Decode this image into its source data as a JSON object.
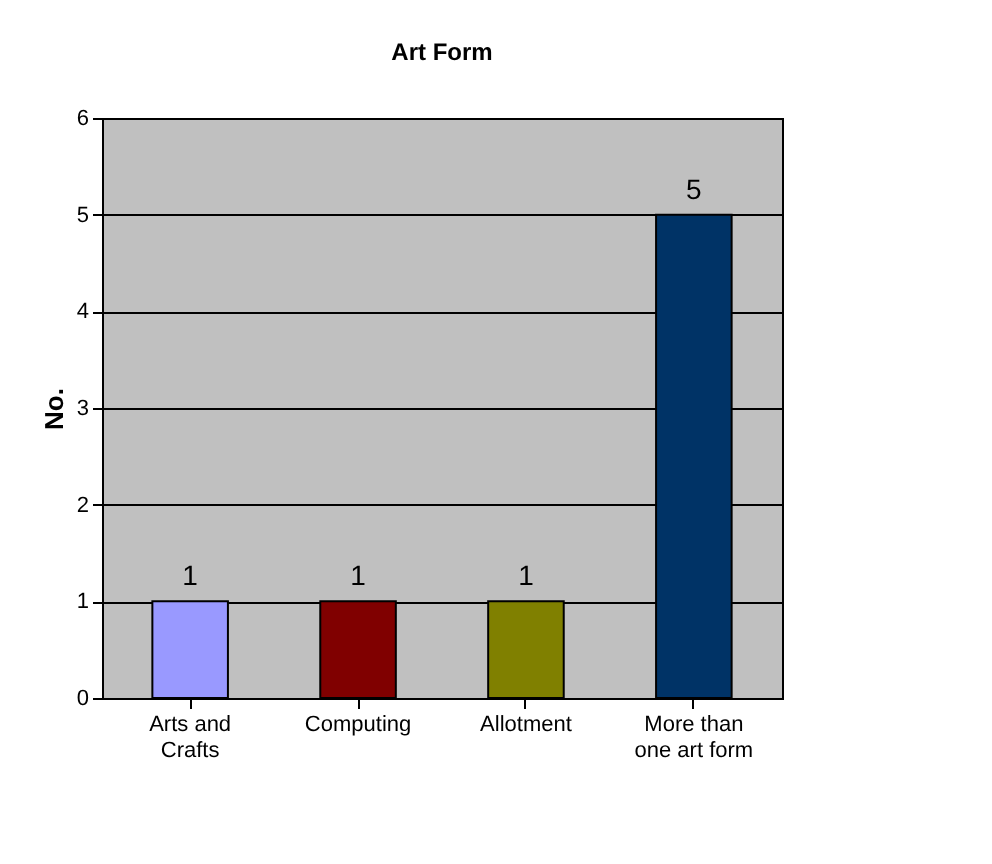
{
  "chart_data": {
    "type": "bar",
    "title": "Art Form",
    "ylabel": "No.",
    "categories": [
      "Arts and Crafts",
      "Computing",
      "Allotment",
      "More than one art form"
    ],
    "values": [
      1,
      1,
      1,
      5
    ],
    "colors": [
      "#9999ff",
      "#800000",
      "#808000",
      "#003366"
    ],
    "ylim": [
      0,
      6
    ],
    "yticks": [
      0,
      1,
      2,
      3,
      4,
      5,
      6
    ],
    "grid": "y",
    "data_labels": true
  }
}
